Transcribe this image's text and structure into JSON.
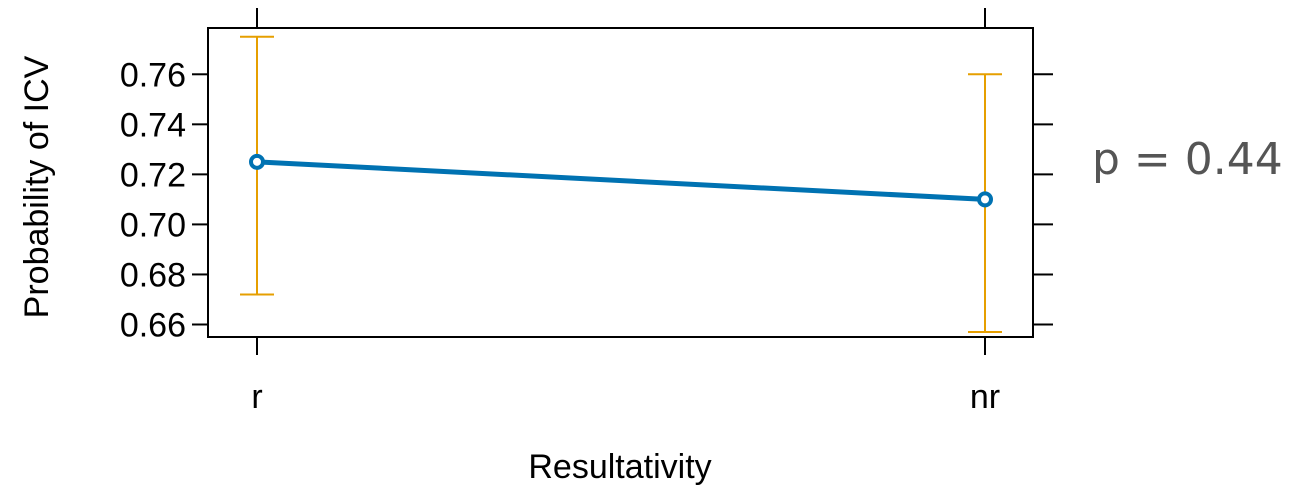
{
  "chart_data": {
    "type": "line",
    "xlabel": "Resultativity",
    "ylabel": "Probability of ICV",
    "categories": [
      "r",
      "nr"
    ],
    "values": [
      0.725,
      0.71
    ],
    "ci_lower": [
      0.672,
      0.657
    ],
    "ci_upper": [
      0.775,
      0.76
    ],
    "ylim": [
      0.655,
      0.7785
    ],
    "yticks": [
      "0.66",
      "0.68",
      "0.70",
      "0.72",
      "0.74",
      "0.76"
    ],
    "grid": false,
    "colors": {
      "line": "#0072B2",
      "errorbar": "#E69F00"
    }
  },
  "annotation": {
    "text": "p = 0.44",
    "color": "#555555"
  }
}
